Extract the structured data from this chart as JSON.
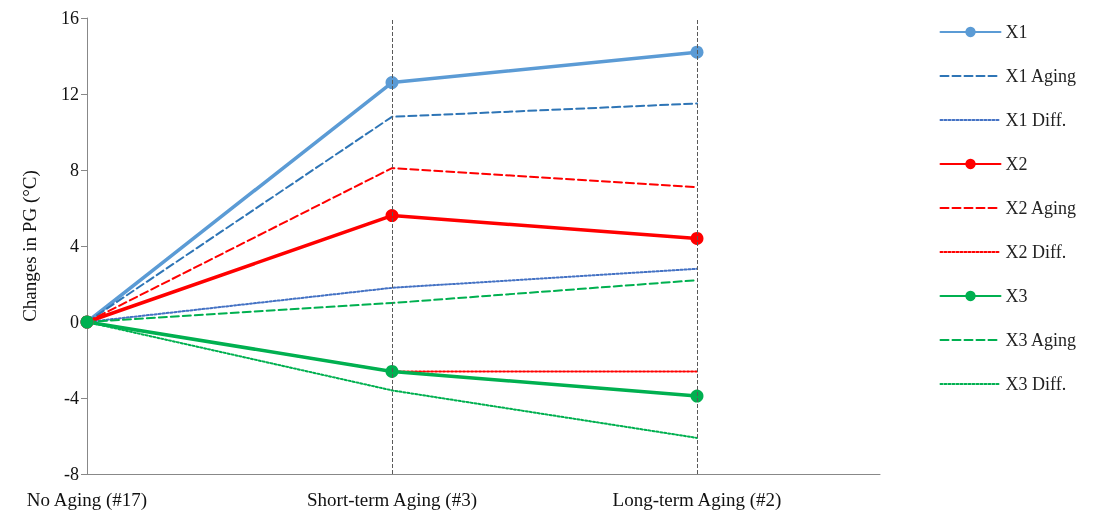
{
  "chart_data": {
    "type": "line",
    "ylabel": "Changes in PG (°C)",
    "categories": [
      "No Aging (#17)",
      "Short-term Aging (#3)",
      "Long-term Aging (#2)"
    ],
    "ylim": [
      -8,
      16
    ],
    "yticks": [
      -8,
      -4,
      0,
      4,
      8,
      12,
      16
    ],
    "grid": false,
    "legend": "right",
    "ref_lines": [
      {
        "axis": "x",
        "value": "Short-term Aging (#3)",
        "color": "#595959",
        "line_style": "dashed"
      },
      {
        "axis": "x",
        "value": "Long-term Aging (#2)",
        "color": "#595959",
        "line_style": "dashed"
      }
    ],
    "series": [
      {
        "name": "X1",
        "color": "#5b9bd5",
        "values": [
          0,
          12.6,
          14.2
        ],
        "marker": "circle",
        "line_style": "solid"
      },
      {
        "name": "X1 Aging",
        "color": "#2e75b6",
        "values": [
          0,
          10.8,
          11.5
        ],
        "marker": "none",
        "line_style": "dashed"
      },
      {
        "name": "X1 Diff.",
        "color": "#4472c4",
        "values": [
          0,
          1.8,
          2.8
        ],
        "marker": "none",
        "line_style": "dotted"
      },
      {
        "name": "X2",
        "color": "#ff0000",
        "values": [
          0,
          5.6,
          4.4
        ],
        "marker": "circle",
        "line_style": "solid"
      },
      {
        "name": "X2 Aging",
        "color": "#ff0000",
        "values": [
          0,
          8.1,
          7.1
        ],
        "marker": "none",
        "line_style": "dashed"
      },
      {
        "name": "X2 Diff.",
        "color": "#ff0000",
        "values": [
          0,
          -2.6,
          -2.6
        ],
        "marker": "none",
        "line_style": "dotted"
      },
      {
        "name": "X3",
        "color": "#00b050",
        "values": [
          0,
          -2.6,
          -3.9
        ],
        "marker": "circle",
        "line_style": "solid"
      },
      {
        "name": "X3 Aging",
        "color": "#00b050",
        "values": [
          0,
          1.0,
          2.2
        ],
        "marker": "none",
        "line_style": "dashed"
      },
      {
        "name": "X3 Diff.",
        "color": "#00b050",
        "values": [
          0,
          -3.6,
          -6.1
        ],
        "marker": "none",
        "line_style": "dotted"
      }
    ]
  }
}
